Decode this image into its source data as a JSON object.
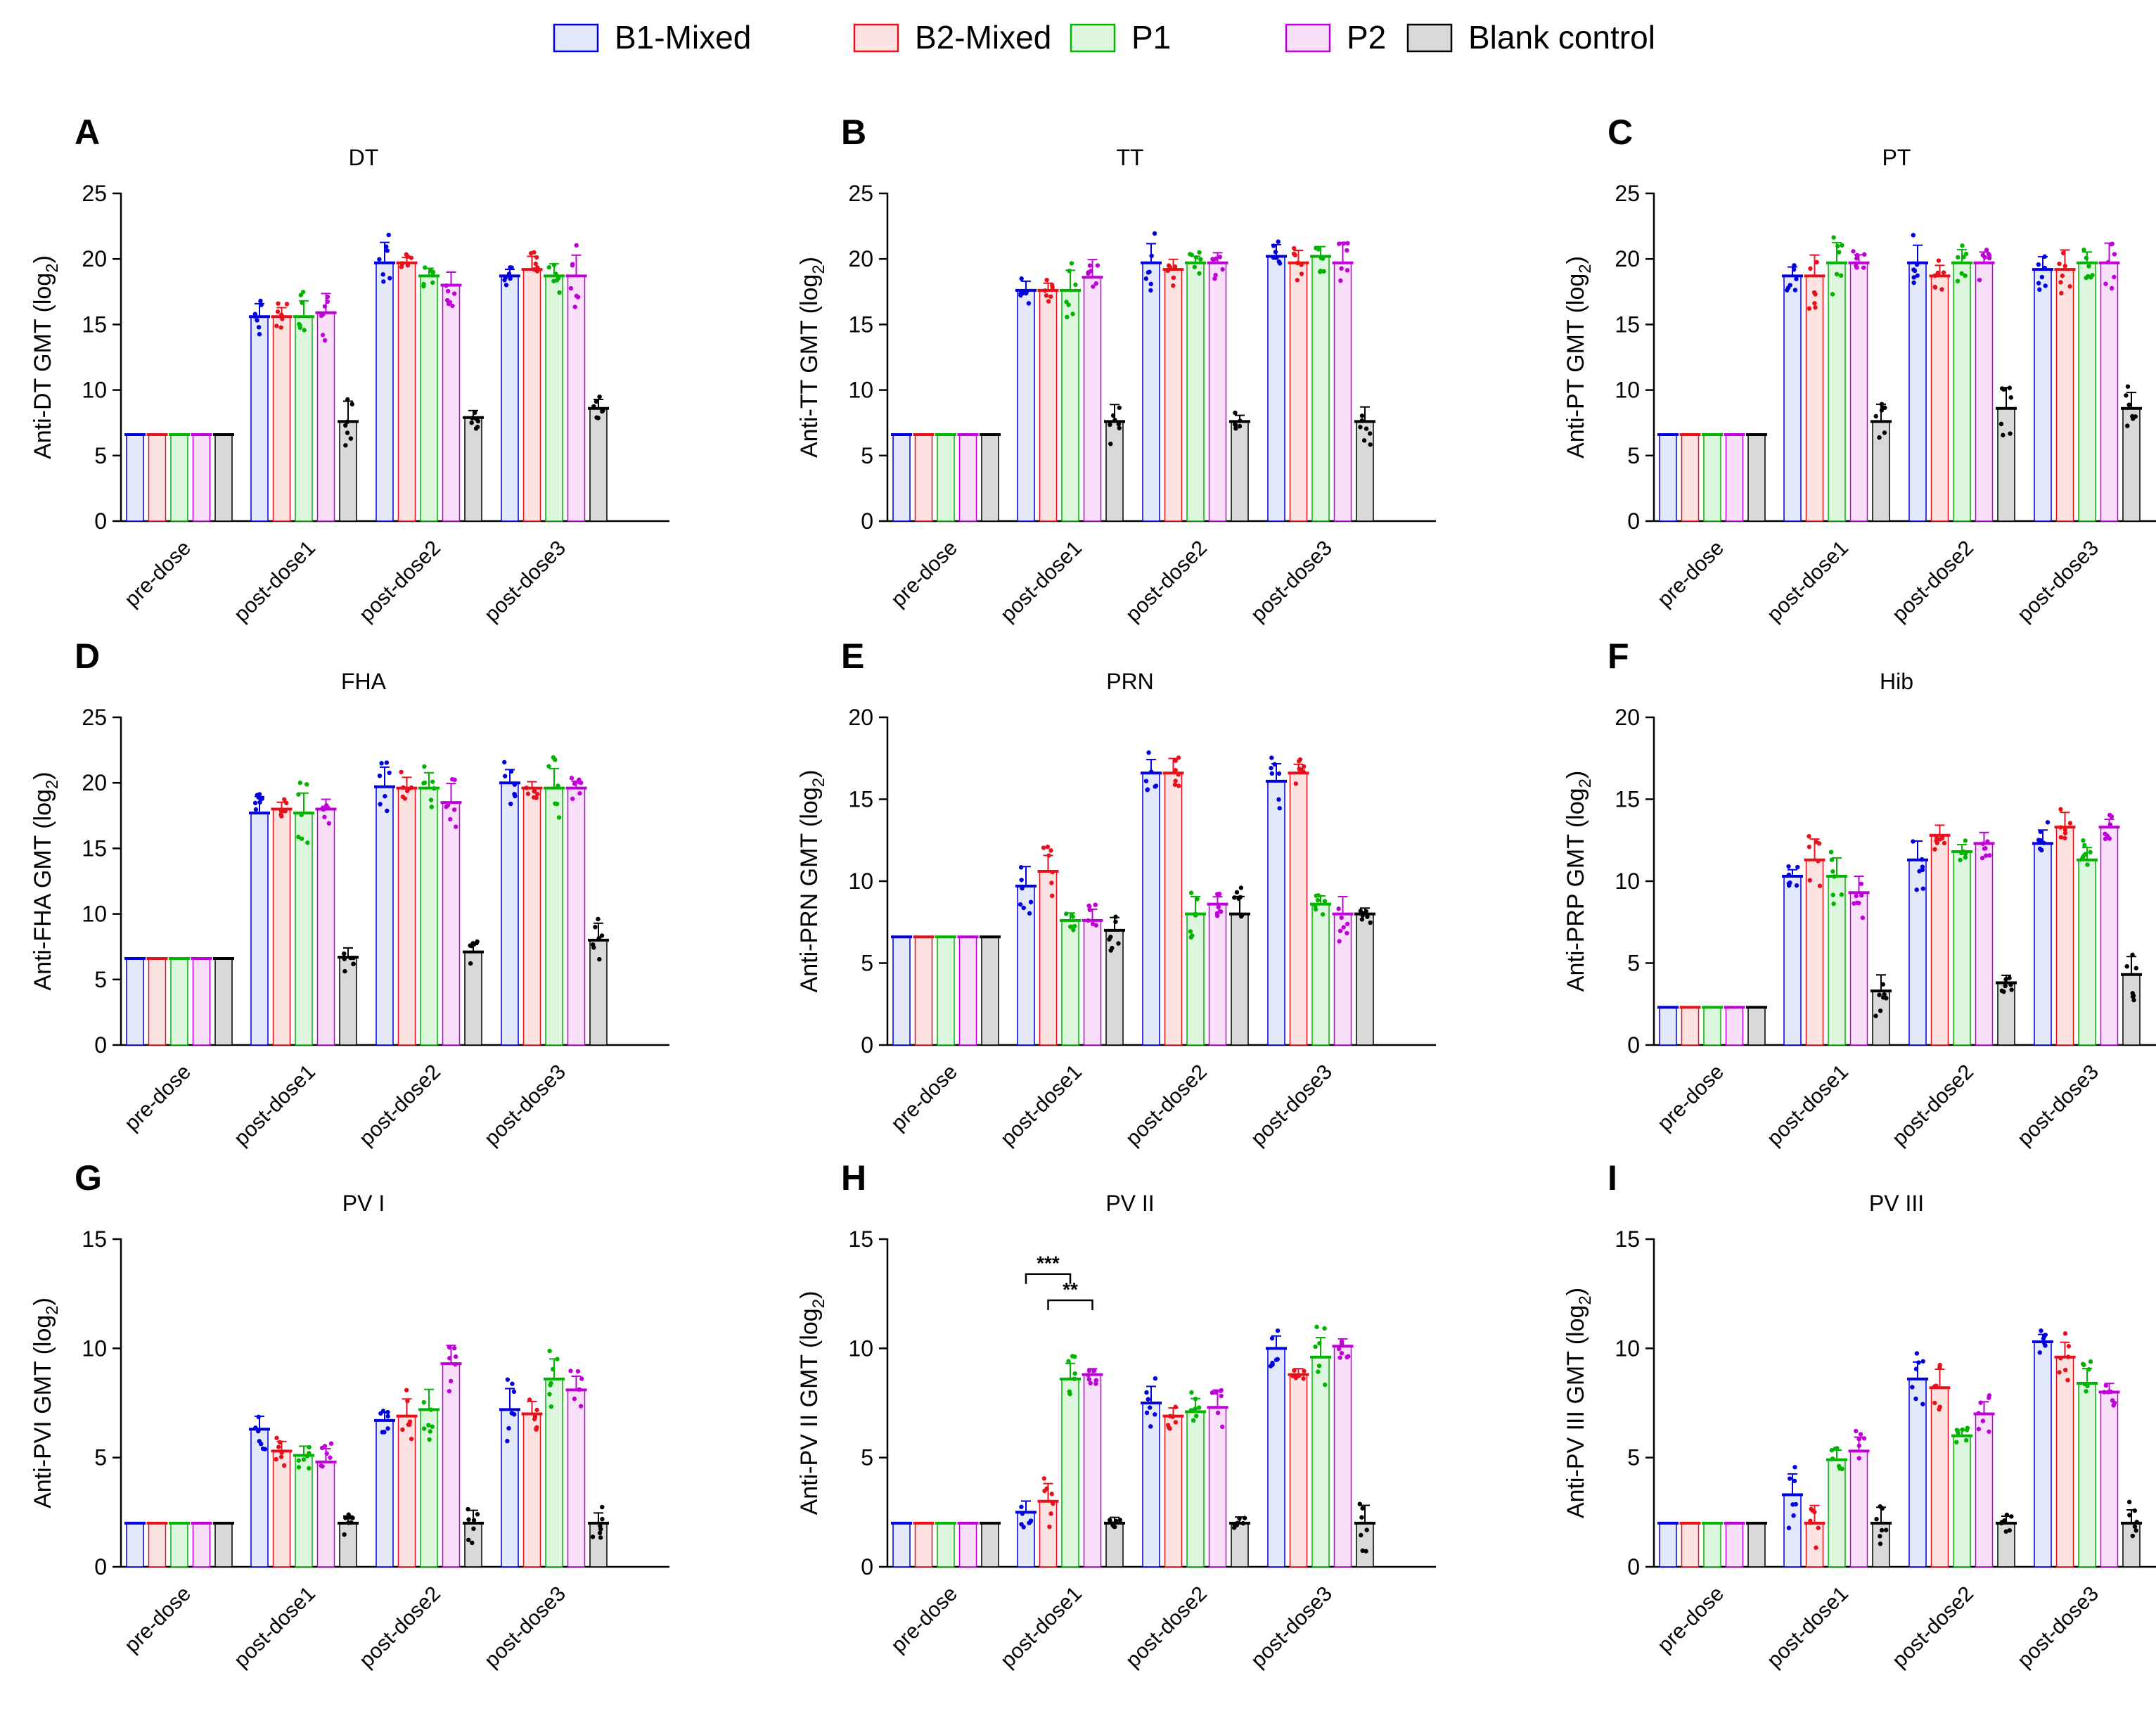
{
  "legend": {
    "entries": [
      {
        "name": "B1-Mixed",
        "color": "#0000e0",
        "fill": "#e4e8fb"
      },
      {
        "name": "B2-Mixed",
        "color": "#e8101a",
        "fill": "#fde2e2"
      },
      {
        "name": "P1",
        "color": "#00b400",
        "fill": "#dcf7de"
      },
      {
        "name": "P2",
        "color": "#c000d8",
        "fill": "#f8e0fb"
      },
      {
        "name": "Blank control",
        "color": "#000000",
        "fill": "#d9d9d9"
      }
    ]
  },
  "chart_data": [
    {
      "type": "bar",
      "letter": "A",
      "title": "DT",
      "ylabel": "Anti-DT GMT (log",
      "ylim": [
        0,
        25
      ],
      "yticks": [
        0,
        5,
        10,
        15,
        20,
        25
      ],
      "categories": [
        "pre-dose",
        "post-dose1",
        "post-dose2",
        "post-dose3"
      ],
      "series": [
        {
          "name": "B1-Mixed",
          "values": [
            6.6,
            15.6,
            19.7,
            18.7
          ]
        },
        {
          "name": "B2-Mixed",
          "values": [
            6.6,
            15.6,
            19.7,
            19.2
          ]
        },
        {
          "name": "P1",
          "values": [
            6.6,
            15.6,
            18.7,
            18.7
          ]
        },
        {
          "name": "P2",
          "values": [
            6.6,
            15.9,
            18.0,
            18.7
          ]
        },
        {
          "name": "Blank control",
          "values": [
            6.6,
            7.6,
            7.9,
            8.6
          ]
        }
      ],
      "sig": []
    },
    {
      "type": "bar",
      "letter": "B",
      "title": "TT",
      "ylabel": "Anti-TT GMT  (log",
      "ylim": [
        0,
        25
      ],
      "yticks": [
        0,
        5,
        10,
        15,
        20,
        25
      ],
      "categories": [
        "pre-dose",
        "post-dose1",
        "post-dose2",
        "post-dose3"
      ],
      "series": [
        {
          "name": "B1-Mixed",
          "values": [
            6.6,
            17.6,
            19.7,
            20.2
          ]
        },
        {
          "name": "B2-Mixed",
          "values": [
            6.6,
            17.6,
            19.2,
            19.7
          ]
        },
        {
          "name": "P1",
          "values": [
            6.6,
            17.6,
            19.7,
            20.2
          ]
        },
        {
          "name": "P2",
          "values": [
            6.6,
            18.6,
            19.7,
            19.7
          ]
        },
        {
          "name": "Blank control",
          "values": [
            6.6,
            7.6,
            7.6,
            7.6
          ]
        }
      ],
      "sig": []
    },
    {
      "type": "bar",
      "letter": "C",
      "title": "PT",
      "ylabel": "Anti-PT GMT  (log",
      "ylim": [
        0,
        25
      ],
      "yticks": [
        0,
        5,
        10,
        15,
        20,
        25
      ],
      "categories": [
        "pre-dose",
        "post-dose1",
        "post-dose2",
        "post-dose3"
      ],
      "series": [
        {
          "name": "B1-Mixed",
          "values": [
            6.6,
            18.7,
            19.7,
            19.2
          ]
        },
        {
          "name": "B2-Mixed",
          "values": [
            6.6,
            18.7,
            18.7,
            19.2
          ]
        },
        {
          "name": "P1",
          "values": [
            6.6,
            19.7,
            19.7,
            19.7
          ]
        },
        {
          "name": "P2",
          "values": [
            6.6,
            19.7,
            19.7,
            19.7
          ]
        },
        {
          "name": "Blank control",
          "values": [
            6.6,
            7.6,
            8.6,
            8.6
          ]
        }
      ],
      "sig": []
    },
    {
      "type": "bar",
      "letter": "D",
      "title": "FHA",
      "ylabel": "Anti-FHA GMT  (log",
      "ylim": [
        0,
        25
      ],
      "yticks": [
        0,
        5,
        10,
        15,
        20,
        25
      ],
      "categories": [
        "pre-dose",
        "post-dose1",
        "post-dose2",
        "post-dose3"
      ],
      "series": [
        {
          "name": "B1-Mixed",
          "values": [
            6.6,
            17.7,
            19.7,
            20.0
          ]
        },
        {
          "name": "B2-Mixed",
          "values": [
            6.6,
            18.0,
            19.6,
            19.6
          ]
        },
        {
          "name": "P1",
          "values": [
            6.6,
            17.7,
            19.6,
            19.6
          ]
        },
        {
          "name": "P2",
          "values": [
            6.6,
            18.0,
            18.5,
            19.6
          ]
        },
        {
          "name": "Blank control",
          "values": [
            6.6,
            6.7,
            7.1,
            8.0
          ]
        }
      ],
      "sig": []
    },
    {
      "type": "bar",
      "letter": "E",
      "title": "PRN",
      "ylabel": "Anti-PRN GMT  (log",
      "ylim": [
        0,
        20
      ],
      "yticks": [
        0,
        5,
        10,
        15,
        20
      ],
      "categories": [
        "pre-dose",
        "post-dose1",
        "post-dose2",
        "post-dose3"
      ],
      "series": [
        {
          "name": "B1-Mixed",
          "values": [
            6.6,
            9.7,
            16.6,
            16.1
          ]
        },
        {
          "name": "B2-Mixed",
          "values": [
            6.6,
            10.6,
            16.6,
            16.6
          ]
        },
        {
          "name": "P1",
          "values": [
            6.6,
            7.6,
            8.0,
            8.6
          ]
        },
        {
          "name": "P2",
          "values": [
            6.6,
            7.6,
            8.6,
            8.0
          ]
        },
        {
          "name": "Blank control",
          "values": [
            6.6,
            7.0,
            8.0,
            8.0
          ]
        }
      ],
      "sig": []
    },
    {
      "type": "bar",
      "letter": "F",
      "title": "Hib",
      "ylabel": "Anti-PRP GMT  (log",
      "ylim": [
        0,
        20
      ],
      "yticks": [
        0,
        5,
        10,
        15,
        20
      ],
      "categories": [
        "pre-dose",
        "post-dose1",
        "post-dose2",
        "post-dose3"
      ],
      "series": [
        {
          "name": "B1-Mixed",
          "values": [
            2.3,
            10.3,
            11.3,
            12.3
          ]
        },
        {
          "name": "B2-Mixed",
          "values": [
            2.3,
            11.3,
            12.8,
            13.3
          ]
        },
        {
          "name": "P1",
          "values": [
            2.3,
            10.3,
            11.8,
            11.3
          ]
        },
        {
          "name": "P2",
          "values": [
            2.3,
            9.3,
            12.3,
            13.3
          ]
        },
        {
          "name": "Blank control",
          "values": [
            2.3,
            3.3,
            3.8,
            4.3
          ]
        }
      ],
      "sig": []
    },
    {
      "type": "bar",
      "letter": "G",
      "title": "PV I",
      "ylabel": "Anti-PVI GMT  (log",
      "ylim": [
        0,
        15
      ],
      "yticks": [
        0,
        5,
        10,
        15
      ],
      "categories": [
        "pre-dose",
        "post-dose1",
        "post-dose2",
        "post-dose3"
      ],
      "series": [
        {
          "name": "B1-Mixed",
          "values": [
            2.0,
            6.3,
            6.7,
            7.2
          ]
        },
        {
          "name": "B2-Mixed",
          "values": [
            2.0,
            5.3,
            6.9,
            7.0
          ]
        },
        {
          "name": "P1",
          "values": [
            2.0,
            5.1,
            7.2,
            8.6
          ]
        },
        {
          "name": "P2",
          "values": [
            2.0,
            4.8,
            9.3,
            8.1
          ]
        },
        {
          "name": "Blank control",
          "values": [
            2.0,
            2.0,
            2.0,
            2.0
          ]
        }
      ],
      "sig": []
    },
    {
      "type": "bar",
      "letter": "H",
      "title": "PV II",
      "ylabel": "Anti-PV II GMT  (log",
      "ylim": [
        0,
        15
      ],
      "yticks": [
        0,
        5,
        10,
        15
      ],
      "categories": [
        "pre-dose",
        "post-dose1",
        "post-dose2",
        "post-dose3"
      ],
      "series": [
        {
          "name": "B1-Mixed",
          "values": [
            2.0,
            2.5,
            7.5,
            10.0
          ]
        },
        {
          "name": "B2-Mixed",
          "values": [
            2.0,
            3.0,
            6.9,
            8.8
          ]
        },
        {
          "name": "P1",
          "values": [
            2.0,
            8.6,
            7.1,
            9.6
          ]
        },
        {
          "name": "P2",
          "values": [
            2.0,
            8.8,
            7.3,
            10.1
          ]
        },
        {
          "name": "Blank control",
          "values": [
            2.0,
            2.0,
            2.0,
            2.0
          ]
        }
      ],
      "sig": [
        {
          "label": "***",
          "category": 1,
          "from": 0,
          "to": 2,
          "y": 13.4
        },
        {
          "label": "**",
          "category": 1,
          "from": 1,
          "to": 3,
          "y": 12.2
        }
      ]
    },
    {
      "type": "bar",
      "letter": "I",
      "title": "PV III",
      "ylabel": "Anti-PV III GMT  (log",
      "ylim": [
        0,
        15
      ],
      "yticks": [
        0,
        5,
        10,
        15
      ],
      "categories": [
        "pre-dose",
        "post-dose1",
        "post-dose2",
        "post-dose3"
      ],
      "series": [
        {
          "name": "B1-Mixed",
          "values": [
            2.0,
            3.3,
            8.6,
            10.3
          ]
        },
        {
          "name": "B2-Mixed",
          "values": [
            2.0,
            2.0,
            8.2,
            9.6
          ]
        },
        {
          "name": "P1",
          "values": [
            2.0,
            4.9,
            6.0,
            8.4
          ]
        },
        {
          "name": "P2",
          "values": [
            2.0,
            5.3,
            7.0,
            8.0
          ]
        },
        {
          "name": "Blank control",
          "values": [
            2.0,
            2.0,
            2.0,
            2.0
          ]
        }
      ],
      "sig": []
    }
  ]
}
